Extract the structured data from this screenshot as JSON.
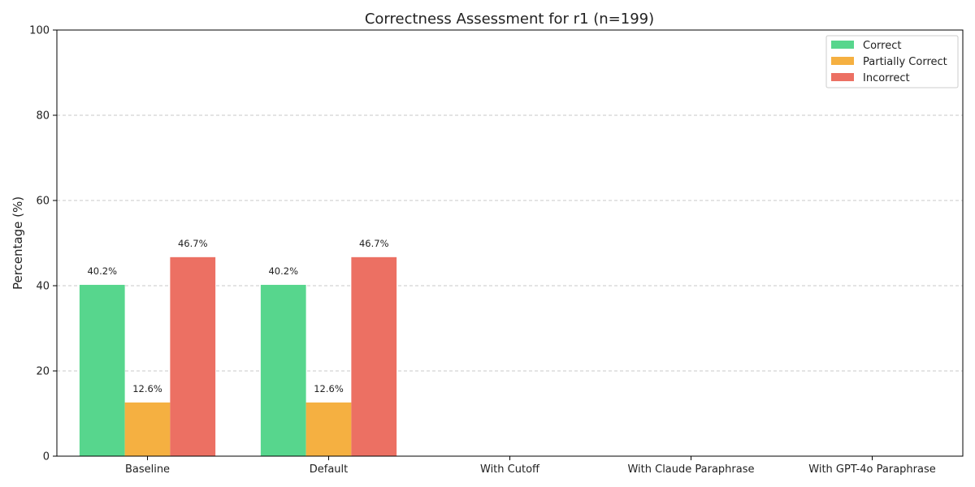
{
  "chart_data": {
    "type": "bar",
    "title": "Correctness Assessment for r1 (n=199)",
    "xlabel": "",
    "ylabel": "Percentage (%)",
    "ylim": [
      0,
      100
    ],
    "yticks": [
      0,
      20,
      40,
      60,
      80,
      100
    ],
    "categories": [
      "Baseline",
      "Default",
      "With Cutoff",
      "With Claude Paraphrase",
      "With GPT-4o Paraphrase"
    ],
    "series": [
      {
        "name": "Correct",
        "color": "#57d68d",
        "values": [
          40.2,
          40.2,
          null,
          null,
          null
        ],
        "labels": [
          "40.2%",
          "40.2%",
          "",
          "",
          ""
        ]
      },
      {
        "name": "Partially Correct",
        "color": "#f5b041",
        "values": [
          12.6,
          12.6,
          null,
          null,
          null
        ],
        "labels": [
          "12.6%",
          "12.6%",
          "",
          "",
          ""
        ]
      },
      {
        "name": "Incorrect",
        "color": "#ec7063",
        "values": [
          46.7,
          46.7,
          null,
          null,
          null
        ],
        "labels": [
          "46.7%",
          "46.7%",
          "",
          "",
          ""
        ]
      }
    ],
    "grid": "y-dashed",
    "legend_position": "top-right"
  }
}
